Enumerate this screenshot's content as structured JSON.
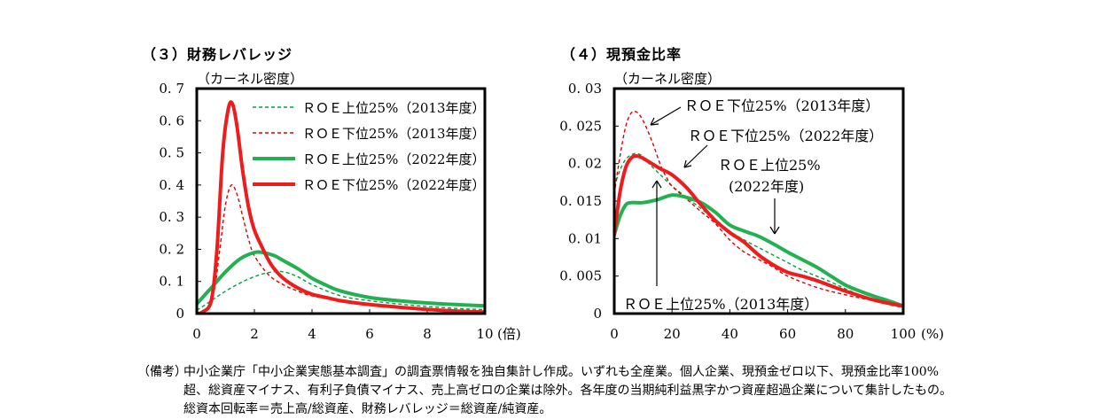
{
  "chart_data": [
    {
      "type": "line",
      "title": "（３）財務レバレッジ",
      "ylabel": "（カーネル密度）",
      "xunit": "(倍)",
      "xlim": [
        0,
        10
      ],
      "ylim": [
        0,
        0.7
      ],
      "xticks": [
        0,
        2,
        4,
        6,
        8,
        10
      ],
      "xtick_labels": [
        "0",
        "2",
        "4",
        "6",
        "8",
        "10"
      ],
      "yticks": [
        0,
        0.1,
        0.2,
        0.3,
        0.4,
        0.5,
        0.6,
        0.7
      ],
      "ytick_labels": [
        "0",
        "0. 1",
        "0. 2",
        "0. 3",
        "0. 4",
        "0. 5",
        "0. 6",
        "0. 7"
      ],
      "legend_position": "top-right",
      "series": [
        {
          "name": "ＲＯＥ上位25%（2013年度）",
          "color": "#00a040",
          "style": "dashed",
          "x": [
            0,
            0.5,
            1,
            1.5,
            2,
            2.5,
            3,
            3.5,
            4,
            5,
            6,
            7,
            8,
            9,
            10
          ],
          "y": [
            0.01,
            0.04,
            0.07,
            0.095,
            0.115,
            0.128,
            0.13,
            0.115,
            0.09,
            0.055,
            0.04,
            0.03,
            0.022,
            0.016,
            0.012
          ]
        },
        {
          "name": "ＲＯＥ下位25%（2013年度）",
          "color": "#e00000",
          "style": "dashed",
          "x": [
            0,
            0.3,
            0.6,
            0.8,
            1.0,
            1.2,
            1.4,
            1.6,
            1.8,
            2.0,
            2.5,
            3,
            3.5,
            4,
            5,
            6,
            7,
            8,
            9,
            10
          ],
          "y": [
            0.0,
            0.01,
            0.07,
            0.2,
            0.34,
            0.4,
            0.37,
            0.3,
            0.23,
            0.18,
            0.12,
            0.09,
            0.07,
            0.055,
            0.04,
            0.03,
            0.022,
            0.015,
            0.01,
            0.007
          ]
        },
        {
          "name": "ＲＯＥ上位25%（2022年度）",
          "color": "#22b050",
          "style": "solid",
          "x": [
            0,
            0.5,
            1,
            1.5,
            2,
            2.3,
            2.7,
            3,
            3.5,
            4,
            4.5,
            5,
            6,
            7,
            8,
            9,
            10
          ],
          "y": [
            0.03,
            0.08,
            0.13,
            0.17,
            0.19,
            0.19,
            0.18,
            0.165,
            0.14,
            0.11,
            0.088,
            0.07,
            0.05,
            0.04,
            0.033,
            0.028,
            0.024
          ]
        },
        {
          "name": "ＲＯＥ下位25%（2022年度）",
          "color": "#ee1c1c",
          "style": "solid",
          "x": [
            0,
            0.2,
            0.5,
            0.7,
            0.9,
            1.1,
            1.25,
            1.4,
            1.6,
            1.8,
            2.0,
            2.3,
            2.6,
            3,
            3.5,
            4,
            4.5,
            5,
            6,
            7,
            8,
            9,
            10
          ],
          "y": [
            0.0,
            0.005,
            0.04,
            0.2,
            0.5,
            0.64,
            0.65,
            0.58,
            0.44,
            0.33,
            0.26,
            0.2,
            0.15,
            0.11,
            0.08,
            0.06,
            0.05,
            0.04,
            0.028,
            0.02,
            0.013,
            0.008,
            0.005
          ]
        }
      ]
    },
    {
      "type": "line",
      "title": "（４）現預金比率",
      "ylabel": "（カーネル密度）",
      "xunit": "(%)",
      "xlim": [
        0,
        100
      ],
      "ylim": [
        0,
        0.03
      ],
      "xticks": [
        0,
        20,
        40,
        60,
        80,
        100
      ],
      "xtick_labels": [
        "0",
        "20",
        "40",
        "60",
        "80",
        "100"
      ],
      "yticks": [
        0,
        0.005,
        0.01,
        0.015,
        0.02,
        0.025,
        0.03
      ],
      "ytick_labels": [
        "0",
        "0. 005",
        "0. 01",
        "0. 015",
        "0. 02",
        "0. 025",
        "0. 03"
      ],
      "annotations": [
        "ＲＯＥ下位25%（2013年度）",
        "ＲＯＥ下位25%（2022年度）",
        "ＲＯＥ上位25%",
        "(2022年度)",
        "ＲＯＥ上位25%（2013年度）"
      ],
      "series": [
        {
          "name": "ＲＯＥ上位25%（2013年度）",
          "color": "#00a040",
          "style": "dashed",
          "x": [
            0,
            3,
            6,
            9,
            12,
            16,
            20,
            25,
            30,
            35,
            40,
            45,
            50,
            55,
            60,
            65,
            70,
            75,
            80,
            85,
            90,
            95,
            100
          ],
          "y": [
            0.017,
            0.02,
            0.0212,
            0.0212,
            0.02,
            0.0185,
            0.017,
            0.0155,
            0.014,
            0.0125,
            0.011,
            0.0098,
            0.0088,
            0.0078,
            0.0068,
            0.0058,
            0.005,
            0.0042,
            0.0033,
            0.0025,
            0.0018,
            0.0012,
            0.0008
          ]
        },
        {
          "name": "ＲＯＥ下位25%（2013年度）",
          "color": "#e00000",
          "style": "dashed",
          "x": [
            0,
            2,
            4,
            6,
            8,
            10,
            12,
            14,
            16,
            18,
            20,
            25,
            30,
            35,
            40,
            45,
            50,
            55,
            60,
            70,
            80,
            90,
            100
          ],
          "y": [
            0.016,
            0.021,
            0.025,
            0.0268,
            0.0268,
            0.0257,
            0.024,
            0.022,
            0.0198,
            0.0182,
            0.017,
            0.0153,
            0.0136,
            0.012,
            0.0098,
            0.0082,
            0.0072,
            0.0062,
            0.005,
            0.0035,
            0.0025,
            0.0017,
            0.001
          ]
        },
        {
          "name": "ＲＯＥ上位25%（2022年度）",
          "color": "#22b050",
          "style": "solid",
          "x": [
            0,
            2,
            4,
            6,
            10,
            15,
            20,
            25,
            30,
            35,
            40,
            45,
            50,
            55,
            60,
            65,
            70,
            75,
            80,
            85,
            90,
            95,
            100
          ],
          "y": [
            0.0105,
            0.013,
            0.0145,
            0.0148,
            0.0148,
            0.0152,
            0.0158,
            0.0155,
            0.0148,
            0.0135,
            0.0118,
            0.011,
            0.0103,
            0.0093,
            0.0082,
            0.0072,
            0.0062,
            0.005,
            0.0038,
            0.003,
            0.0023,
            0.0017,
            0.001
          ]
        },
        {
          "name": "ＲＯＥ下位25%（2022年度）",
          "color": "#ee1c1c",
          "style": "solid",
          "x": [
            0,
            2,
            4,
            6,
            8,
            10,
            13,
            16,
            20,
            25,
            30,
            35,
            40,
            45,
            50,
            55,
            60,
            65,
            70,
            75,
            80,
            90,
            100
          ],
          "y": [
            0.0105,
            0.0162,
            0.0195,
            0.0208,
            0.021,
            0.0207,
            0.02,
            0.0193,
            0.0185,
            0.0168,
            0.0145,
            0.0124,
            0.0108,
            0.0095,
            0.0078,
            0.0065,
            0.0055,
            0.005,
            0.0044,
            0.0037,
            0.003,
            0.0018,
            0.001
          ]
        }
      ]
    }
  ],
  "note": {
    "tag": "（備考）",
    "text": "中小企業庁「中小企業実態基本調査」の調査票情報を独自集計し作成。いずれも全産業。個人企業、現預金ゼロ以下、現預金比率100%超、総資産マイナス、有利子負債マイナス、売上高ゼロの企業は除外。各年度の当期純利益黒字かつ資産超過企業について集計したもの。総資本回転率＝売上高/総資産、財務レバレッジ＝総資産/純資産。"
  }
}
